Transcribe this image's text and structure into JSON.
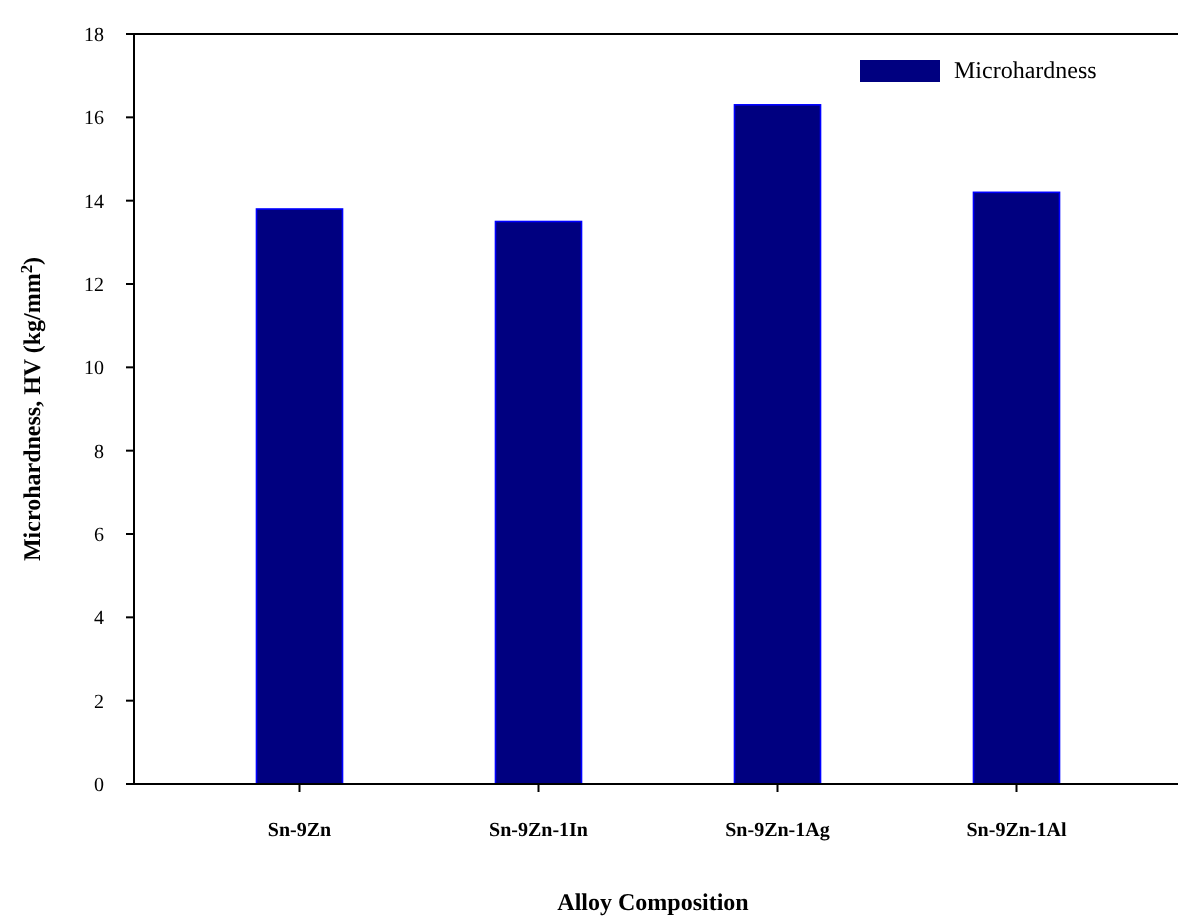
{
  "chart_data": {
    "type": "bar",
    "xlabel": "Alloy Composition",
    "ylabel": "Microhardness, HV (kg/mm$^{2}$)",
    "categories": [
      "Sn-9Zn",
      "Sn-9Zn-1In",
      "Sn-9Zn-1Ag",
      "Sn-9Zn-1Al"
    ],
    "series": [
      {
        "name": "Microhardness",
        "color": "#000080",
        "values": [
          13.8,
          13.5,
          16.3,
          14.2
        ]
      }
    ],
    "ylim": [
      0,
      18
    ],
    "yticks": [
      0,
      2,
      4,
      6,
      8,
      10,
      12,
      14,
      16,
      18
    ],
    "grid": false,
    "legend": "top right"
  }
}
